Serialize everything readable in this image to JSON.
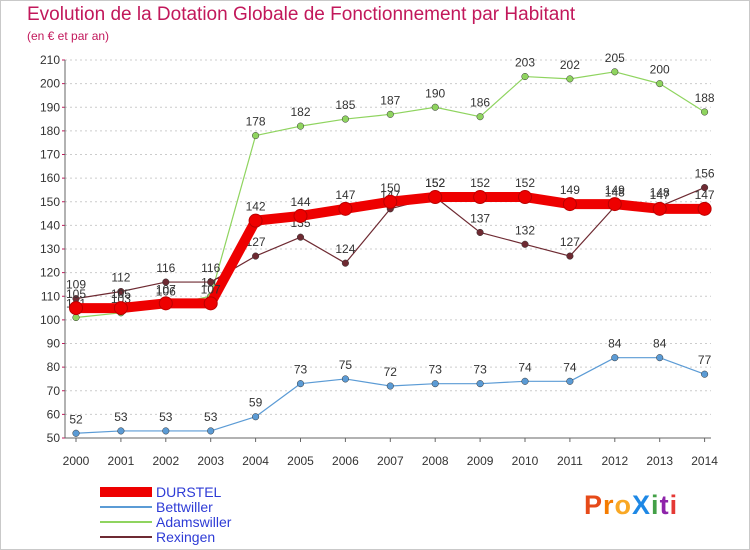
{
  "title": "Evolution de la Dotation Globale de Fonctionnement par Habitant",
  "subtitle": "(en € et par an)",
  "logo_text": "ProXiti",
  "logo_colors": [
    "#e64a19",
    "#f57c00",
    "#f9a825",
    "#1e88e5",
    "#43a047",
    "#8e24aa",
    "#e53935"
  ],
  "chart_data": {
    "type": "line",
    "title": "Evolution de la Dotation Globale de Fonctionnement par Habitant",
    "ylabel": "(en € et par an)",
    "xlabel": "",
    "categories": [
      "2000",
      "2001",
      "2002",
      "2003",
      "2004",
      "2005",
      "2006",
      "2007",
      "2008",
      "2009",
      "2010",
      "2011",
      "2012",
      "2013",
      "2014"
    ],
    "ylim": [
      50,
      210
    ],
    "yticks": [
      50,
      60,
      70,
      80,
      90,
      100,
      110,
      120,
      130,
      140,
      150,
      160,
      170,
      180,
      190,
      200,
      210
    ],
    "grid": "horizontal dashed",
    "legend_position": "bottom-left",
    "series": [
      {
        "name": "Bettwiller",
        "color": "#5b9bd5",
        "values": [
          52,
          53,
          53,
          53,
          59,
          73,
          75,
          72,
          73,
          73,
          74,
          74,
          84,
          84,
          77
        ],
        "labels": [
          "52",
          "53",
          "53",
          "53",
          "59",
          "73",
          "75",
          "72",
          "73",
          "73",
          "74",
          "74",
          "84",
          "84",
          "77"
        ]
      },
      {
        "name": "Adamswiller",
        "color": "#8fd45f",
        "values": [
          101,
          103,
          106,
          110,
          178,
          182,
          185,
          187,
          190,
          186,
          203,
          202,
          205,
          200,
          188
        ],
        "labels": [
          "101",
          "103",
          "106",
          "110",
          "178",
          "182",
          "185",
          "187",
          "190",
          "186",
          "203",
          "202",
          "205",
          "200",
          "188"
        ]
      },
      {
        "name": "Rexingen",
        "color": "#6e2a32",
        "values": [
          109,
          112,
          116,
          116,
          127,
          135,
          124,
          147,
          152,
          137,
          132,
          127,
          148,
          148,
          156
        ],
        "labels": [
          "109",
          "112",
          "116",
          "116",
          "127",
          "135",
          "124",
          "147",
          "152",
          "137",
          "132",
          "127",
          "148",
          "148",
          "156"
        ]
      },
      {
        "name": "DURSTEL",
        "color": "#ee0000",
        "values": [
          105,
          105,
          107,
          107,
          142,
          144,
          147,
          150,
          152,
          152,
          152,
          149,
          149,
          147,
          147
        ],
        "labels": [
          "105",
          "105",
          "107",
          "107",
          "142",
          "144",
          "147",
          "150",
          "152",
          "152",
          "152",
          "149",
          "149",
          "147",
          "147"
        ]
      }
    ],
    "legend": [
      "DURSTEL",
      "Bettwiller",
      "Adamswiller",
      "Rexingen"
    ]
  }
}
